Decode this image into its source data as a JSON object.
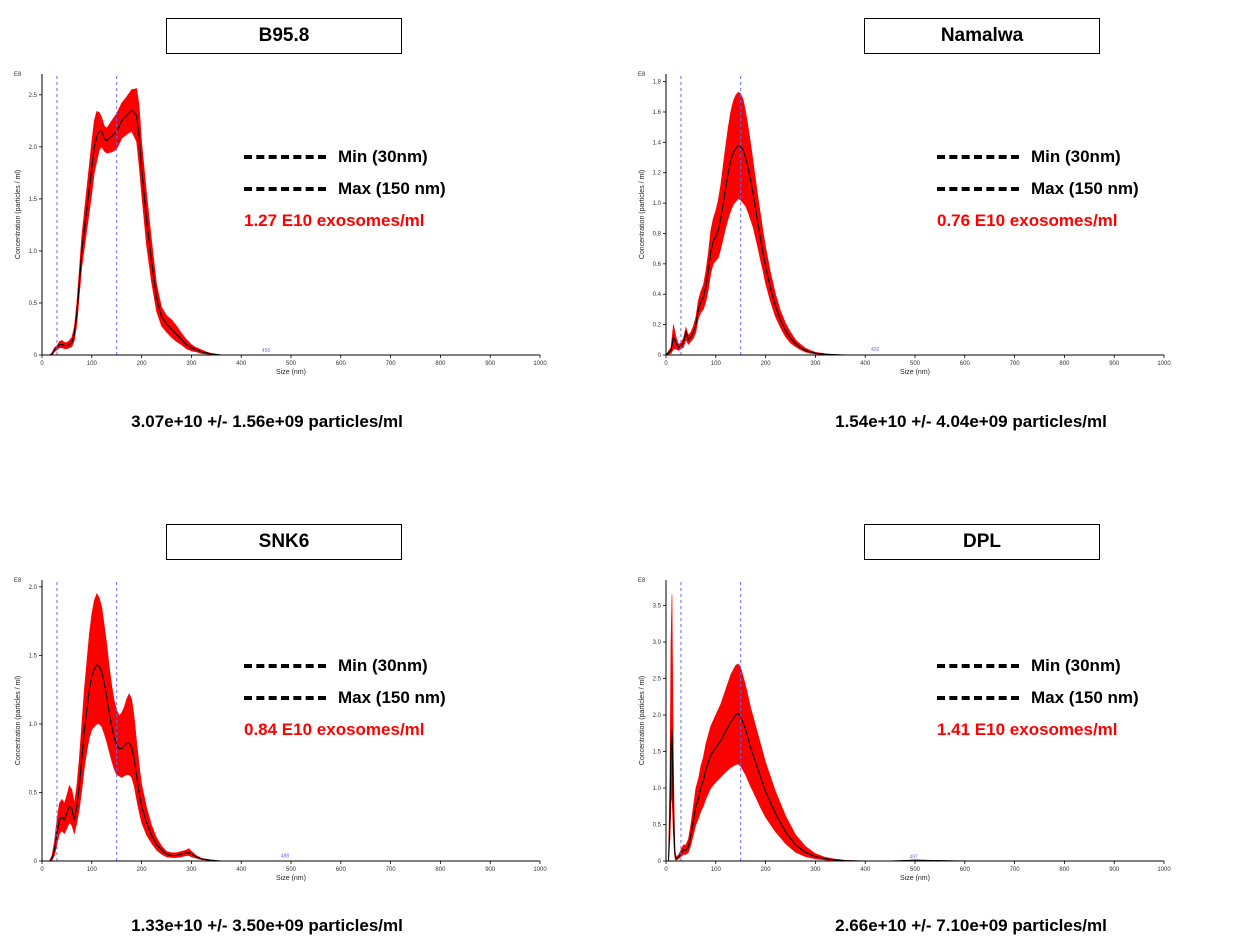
{
  "legend": {
    "min_label": "Min (30nm)",
    "max_label": "Max (150 nm)"
  },
  "colors": {
    "band": "#ff0000",
    "mean": "#000000",
    "marker": "#6a6af0",
    "axis": "#000000",
    "concentration_text": "#ff0000"
  },
  "chart_data": [
    {
      "type": "area",
      "title": "B95.8",
      "xlabel": "Size (nm)",
      "ylabel": "Concentration (particles / ml)",
      "yexponent": "E8",
      "xlim": [
        0,
        1000
      ],
      "ylim": [
        0,
        2.7
      ],
      "xticks": [
        0,
        100,
        200,
        300,
        400,
        500,
        600,
        700,
        800,
        900,
        1000
      ],
      "yticks": [
        0,
        0.5,
        1.0,
        1.5,
        2.0,
        2.5
      ],
      "ytick_labels": [
        "0",
        "0.5",
        "1.0",
        "1.5",
        "2.0",
        "2.5"
      ],
      "vlines": [
        30,
        150
      ],
      "peak_labels": [
        {
          "x": 450,
          "y": 0.02,
          "text": "450"
        }
      ],
      "x": [
        0,
        15,
        20,
        25,
        30,
        35,
        40,
        45,
        50,
        55,
        60,
        65,
        70,
        75,
        80,
        90,
        100,
        105,
        110,
        115,
        120,
        125,
        130,
        140,
        150,
        160,
        170,
        180,
        190,
        195,
        200,
        210,
        220,
        230,
        240,
        250,
        260,
        270,
        280,
        290,
        300,
        310,
        320,
        330,
        340,
        350,
        360,
        380,
        400,
        450,
        500,
        600,
        700,
        800,
        900,
        1000
      ],
      "mean": [
        0,
        0,
        0.01,
        0.05,
        0.07,
        0.1,
        0.1,
        0.09,
        0.09,
        0.1,
        0.12,
        0.2,
        0.4,
        0.7,
        1.0,
        1.4,
        1.8,
        2.0,
        2.1,
        2.15,
        2.15,
        2.08,
        2.06,
        2.1,
        2.15,
        2.25,
        2.3,
        2.35,
        2.3,
        2.1,
        1.8,
        1.3,
        0.9,
        0.55,
        0.37,
        0.3,
        0.25,
        0.2,
        0.15,
        0.1,
        0.07,
        0.05,
        0.03,
        0.02,
        0.01,
        0.005,
        0,
        0,
        0,
        0,
        0,
        0,
        0,
        0,
        0,
        0
      ],
      "upper": [
        0,
        0,
        0.02,
        0.07,
        0.09,
        0.13,
        0.14,
        0.12,
        0.12,
        0.14,
        0.17,
        0.27,
        0.5,
        0.82,
        1.15,
        1.6,
        2.05,
        2.25,
        2.34,
        2.33,
        2.28,
        2.2,
        2.18,
        2.25,
        2.32,
        2.42,
        2.48,
        2.55,
        2.56,
        2.4,
        2.05,
        1.55,
        1.1,
        0.68,
        0.46,
        0.38,
        0.34,
        0.28,
        0.21,
        0.15,
        0.1,
        0.07,
        0.05,
        0.03,
        0.015,
        0.008,
        0,
        0,
        0,
        0,
        0,
        0,
        0,
        0,
        0,
        0
      ],
      "lower": [
        0,
        0,
        0,
        0.03,
        0.05,
        0.07,
        0.07,
        0.06,
        0.06,
        0.07,
        0.08,
        0.14,
        0.3,
        0.58,
        0.85,
        1.2,
        1.55,
        1.75,
        1.86,
        1.97,
        2.0,
        1.96,
        1.94,
        1.95,
        1.98,
        2.08,
        2.12,
        2.15,
        2.05,
        1.82,
        1.55,
        1.05,
        0.7,
        0.42,
        0.28,
        0.22,
        0.17,
        0.13,
        0.1,
        0.06,
        0.04,
        0.03,
        0.015,
        0.01,
        0.005,
        0,
        0,
        0,
        0,
        0,
        0,
        0,
        0,
        0,
        0,
        0
      ]
    },
    {
      "type": "area",
      "title": "Namalwa",
      "xlabel": "Size (nm)",
      "ylabel": "Concentration (particles / ml)",
      "yexponent": "E8",
      "xlim": [
        0,
        1000
      ],
      "ylim": [
        0,
        1.85
      ],
      "xticks": [
        0,
        100,
        200,
        300,
        400,
        500,
        600,
        700,
        800,
        900,
        1000
      ],
      "yticks": [
        0,
        0.2,
        0.4,
        0.6,
        0.8,
        1.0,
        1.2,
        1.4,
        1.6,
        1.8
      ],
      "ytick_labels": [
        "0",
        "0.2",
        "0.4",
        "0.6",
        "0.8",
        "1.0",
        "1.2",
        "1.4",
        "1.6",
        "1.8"
      ],
      "vlines": [
        30,
        150
      ],
      "peak_labels": [
        {
          "x": 420,
          "y": 0.02,
          "text": "420"
        }
      ],
      "x": [
        0,
        10,
        15,
        20,
        25,
        30,
        35,
        40,
        45,
        50,
        55,
        60,
        65,
        70,
        75,
        80,
        85,
        90,
        95,
        100,
        105,
        110,
        115,
        120,
        125,
        130,
        135,
        140,
        145,
        150,
        155,
        160,
        165,
        170,
        175,
        180,
        185,
        190,
        195,
        200,
        210,
        220,
        230,
        240,
        250,
        260,
        270,
        280,
        290,
        300,
        320,
        340,
        360,
        400,
        500,
        600,
        800,
        1000
      ],
      "mean": [
        0,
        0.03,
        0.12,
        0.08,
        0.05,
        0.06,
        0.08,
        0.15,
        0.1,
        0.12,
        0.15,
        0.2,
        0.3,
        0.35,
        0.38,
        0.45,
        0.55,
        0.68,
        0.75,
        0.78,
        0.82,
        0.9,
        1.0,
        1.1,
        1.2,
        1.28,
        1.33,
        1.36,
        1.38,
        1.37,
        1.35,
        1.3,
        1.23,
        1.15,
        1.06,
        0.96,
        0.86,
        0.76,
        0.67,
        0.58,
        0.44,
        0.32,
        0.23,
        0.16,
        0.11,
        0.075,
        0.05,
        0.03,
        0.02,
        0.012,
        0.005,
        0.002,
        0,
        0,
        0,
        0,
        0,
        0
      ],
      "upper": [
        0,
        0.05,
        0.2,
        0.12,
        0.07,
        0.08,
        0.11,
        0.18,
        0.13,
        0.15,
        0.19,
        0.25,
        0.36,
        0.42,
        0.46,
        0.55,
        0.67,
        0.82,
        0.9,
        0.95,
        1.02,
        1.12,
        1.25,
        1.38,
        1.5,
        1.6,
        1.67,
        1.71,
        1.73,
        1.72,
        1.68,
        1.6,
        1.5,
        1.39,
        1.27,
        1.15,
        1.03,
        0.92,
        0.81,
        0.71,
        0.54,
        0.4,
        0.29,
        0.21,
        0.15,
        0.1,
        0.07,
        0.045,
        0.03,
        0.018,
        0.008,
        0.003,
        0,
        0,
        0,
        0,
        0,
        0
      ],
      "lower": [
        0,
        0.01,
        0.04,
        0.04,
        0.03,
        0.04,
        0.05,
        0.1,
        0.07,
        0.09,
        0.11,
        0.15,
        0.24,
        0.28,
        0.3,
        0.35,
        0.43,
        0.54,
        0.6,
        0.62,
        0.64,
        0.7,
        0.77,
        0.84,
        0.9,
        0.95,
        0.99,
        1.01,
        1.03,
        1.02,
        1.0,
        0.98,
        0.94,
        0.89,
        0.84,
        0.77,
        0.7,
        0.62,
        0.55,
        0.47,
        0.35,
        0.25,
        0.18,
        0.12,
        0.08,
        0.055,
        0.035,
        0.02,
        0.012,
        0.007,
        0.003,
        0,
        0,
        0,
        0,
        0,
        0,
        0
      ]
    },
    {
      "type": "area",
      "title": "SNK6",
      "xlabel": "Size (nm)",
      "ylabel": "Concentration (particles / ml)",
      "yexponent": "E8",
      "xlim": [
        0,
        1000
      ],
      "ylim": [
        0,
        2.05
      ],
      "xticks": [
        0,
        100,
        200,
        300,
        400,
        500,
        600,
        700,
        800,
        900,
        1000
      ],
      "yticks": [
        0,
        0.5,
        1.0,
        1.5,
        2.0
      ],
      "ytick_labels": [
        "0",
        "0.5",
        "1.0",
        "1.5",
        "2.0"
      ],
      "vlines": [
        30,
        150
      ],
      "peak_labels": [
        {
          "x": 488,
          "y": 0.02,
          "text": "488"
        }
      ],
      "x": [
        0,
        15,
        20,
        25,
        30,
        35,
        40,
        45,
        50,
        55,
        60,
        65,
        70,
        75,
        80,
        85,
        90,
        95,
        100,
        105,
        110,
        115,
        120,
        125,
        130,
        135,
        140,
        145,
        150,
        155,
        160,
        165,
        170,
        175,
        180,
        185,
        190,
        195,
        200,
        210,
        220,
        230,
        240,
        250,
        260,
        270,
        280,
        290,
        295,
        300,
        310,
        320,
        340,
        360,
        400,
        500,
        600,
        800,
        1000
      ],
      "mean": [
        0,
        0,
        0.02,
        0.08,
        0.2,
        0.3,
        0.32,
        0.3,
        0.35,
        0.4,
        0.38,
        0.3,
        0.4,
        0.55,
        0.75,
        0.95,
        1.1,
        1.25,
        1.35,
        1.4,
        1.43,
        1.42,
        1.38,
        1.3,
        1.2,
        1.08,
        0.98,
        0.9,
        0.85,
        0.82,
        0.82,
        0.84,
        0.86,
        0.86,
        0.83,
        0.75,
        0.62,
        0.5,
        0.4,
        0.28,
        0.19,
        0.12,
        0.08,
        0.05,
        0.04,
        0.04,
        0.05,
        0.06,
        0.06,
        0.05,
        0.03,
        0.015,
        0.005,
        0,
        0,
        0,
        0,
        0,
        0
      ],
      "upper": [
        0,
        0,
        0.04,
        0.14,
        0.3,
        0.42,
        0.45,
        0.42,
        0.48,
        0.55,
        0.52,
        0.42,
        0.55,
        0.75,
        1.0,
        1.25,
        1.45,
        1.65,
        1.8,
        1.9,
        1.95,
        1.92,
        1.85,
        1.72,
        1.58,
        1.42,
        1.28,
        1.17,
        1.1,
        1.06,
        1.08,
        1.12,
        1.18,
        1.22,
        1.18,
        1.05,
        0.87,
        0.7,
        0.56,
        0.39,
        0.26,
        0.17,
        0.11,
        0.07,
        0.06,
        0.06,
        0.07,
        0.08,
        0.09,
        0.07,
        0.04,
        0.02,
        0.008,
        0,
        0,
        0,
        0,
        0,
        0
      ],
      "lower": [
        0,
        0,
        0.005,
        0.04,
        0.12,
        0.2,
        0.22,
        0.2,
        0.24,
        0.28,
        0.26,
        0.2,
        0.28,
        0.38,
        0.52,
        0.68,
        0.8,
        0.9,
        0.96,
        0.98,
        1.0,
        1.0,
        0.98,
        0.93,
        0.87,
        0.8,
        0.73,
        0.67,
        0.63,
        0.62,
        0.61,
        0.62,
        0.63,
        0.63,
        0.61,
        0.55,
        0.45,
        0.36,
        0.28,
        0.19,
        0.13,
        0.08,
        0.05,
        0.03,
        0.025,
        0.025,
        0.03,
        0.04,
        0.04,
        0.03,
        0.02,
        0.01,
        0.003,
        0,
        0,
        0,
        0,
        0,
        0
      ]
    },
    {
      "type": "area",
      "title": "DPL",
      "xlabel": "Size (nm)",
      "ylabel": "Concentration (particles / ml)",
      "yexponent": "E8",
      "xlim": [
        0,
        1000
      ],
      "ylim": [
        0,
        3.85
      ],
      "xticks": [
        0,
        100,
        200,
        300,
        400,
        500,
        600,
        700,
        800,
        900,
        1000
      ],
      "yticks": [
        0,
        0.5,
        1.0,
        1.5,
        2.0,
        2.5,
        3.0,
        3.5
      ],
      "ytick_labels": [
        "0",
        "0.5",
        "1.0",
        "1.5",
        "2.0",
        "2.5",
        "3.0",
        "3.5"
      ],
      "vlines": [
        30,
        150
      ],
      "peak_labels": [
        {
          "x": 497,
          "y": 0.02,
          "text": "497"
        }
      ],
      "x": [
        0,
        5,
        8,
        10,
        12,
        14,
        16,
        18,
        20,
        25,
        30,
        35,
        40,
        45,
        50,
        55,
        60,
        65,
        70,
        75,
        80,
        90,
        100,
        110,
        120,
        130,
        140,
        145,
        150,
        160,
        170,
        180,
        190,
        200,
        220,
        240,
        260,
        280,
        300,
        320,
        340,
        360,
        400,
        450,
        500,
        600,
        800,
        1000
      ],
      "mean": [
        0,
        0,
        0.6,
        1.6,
        1.8,
        1.0,
        0.4,
        0.08,
        0.03,
        0.05,
        0.1,
        0.15,
        0.15,
        0.2,
        0.35,
        0.55,
        0.75,
        0.85,
        1.0,
        1.1,
        1.25,
        1.45,
        1.55,
        1.65,
        1.78,
        1.9,
        2.0,
        2.02,
        1.98,
        1.8,
        1.55,
        1.35,
        1.15,
        0.95,
        0.65,
        0.4,
        0.22,
        0.12,
        0.06,
        0.03,
        0.015,
        0.005,
        0,
        0,
        0.01,
        0,
        0,
        0
      ],
      "upper": [
        0,
        0,
        1.2,
        3.0,
        3.65,
        2.0,
        0.8,
        0.15,
        0.06,
        0.08,
        0.15,
        0.22,
        0.22,
        0.3,
        0.5,
        0.75,
        1.0,
        1.12,
        1.3,
        1.42,
        1.6,
        1.85,
        2.0,
        2.15,
        2.35,
        2.55,
        2.68,
        2.7,
        2.65,
        2.4,
        2.1,
        1.85,
        1.6,
        1.35,
        0.95,
        0.62,
        0.36,
        0.2,
        0.1,
        0.05,
        0.025,
        0.01,
        0,
        0,
        0.015,
        0,
        0,
        0
      ],
      "lower": [
        0,
        0,
        0.3,
        0.8,
        0.9,
        0.5,
        0.2,
        0.04,
        0.01,
        0.03,
        0.06,
        0.09,
        0.09,
        0.12,
        0.22,
        0.36,
        0.5,
        0.58,
        0.68,
        0.75,
        0.85,
        1.0,
        1.08,
        1.15,
        1.22,
        1.28,
        1.32,
        1.33,
        1.3,
        1.18,
        1.02,
        0.88,
        0.73,
        0.6,
        0.4,
        0.24,
        0.12,
        0.06,
        0.03,
        0.015,
        0.005,
        0,
        0,
        0,
        0.005,
        0,
        0,
        0
      ],
      "concentration_note": ""
    }
  ],
  "panels": [
    {
      "concentration": "1.27 E10 exosomes/ml",
      "summary": "3.07e+10 +/- 1.56e+09 particles/ml"
    },
    {
      "concentration": "0.76 E10 exosomes/ml",
      "summary": "1.54e+10 +/- 4.04e+09 particles/ml"
    },
    {
      "concentration": "0.84 E10 exosomes/ml",
      "summary": "1.33e+10 +/- 3.50e+09 particles/ml"
    },
    {
      "concentration": "1.41 E10 exosomes/ml",
      "summary": "2.66e+10 +/- 7.10e+09 particles/ml"
    }
  ]
}
